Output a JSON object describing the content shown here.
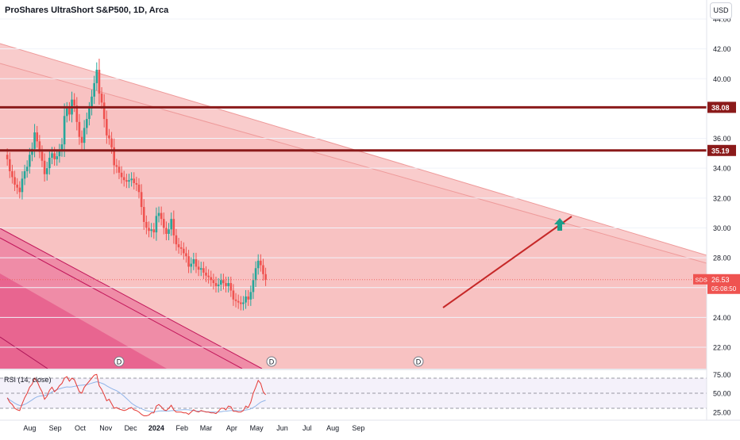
{
  "header": {
    "symbol": "ProShares UltraShort S&P500, 1D, Arca",
    "currency": "USD"
  },
  "colors": {
    "up": "#26a69a",
    "down": "#ef5350",
    "level_line": "#8b1a1a",
    "fan_fill": "#f7b7b7",
    "fan_dark": "#e84c7d",
    "trend_line": "#c62828",
    "arrow": "#1b9e8a",
    "rsi_line": "#e53935",
    "rsi_ma": "#90b4e8"
  },
  "chart_data": [
    {
      "type": "candlestick",
      "title": "ProShares UltraShort S&P500, 1D, Arca",
      "ylim": [
        20.8,
        45.0
      ],
      "y_ticks": [
        "44.00",
        "42.00",
        "40.00",
        "38.00",
        "36.00",
        "34.00",
        "32.00",
        "30.00",
        "28.00",
        "26.00",
        "24.00",
        "22.00"
      ],
      "x_ticks": [
        "Aug",
        "Sep",
        "Oct",
        "Nov",
        "Dec",
        "2024",
        "Feb",
        "Mar",
        "Apr",
        "May",
        "Jun",
        "Jul",
        "Aug",
        "Sep"
      ],
      "horizontal_levels": [
        {
          "label": "38.08",
          "value": 38.08
        },
        {
          "label": "35.19",
          "value": 35.19
        }
      ],
      "last_price": {
        "symbol": "SDS",
        "value": "26.53",
        "countdown": "05:08:50"
      },
      "closes": [
        34.6,
        33.8,
        33.4,
        32.9,
        32.7,
        32.4,
        33.3,
        33.8,
        34.1,
        34.9,
        35.3,
        36.4,
        35.8,
        35.1,
        34.5,
        33.6,
        34.0,
        34.7,
        35.0,
        34.6,
        34.8,
        35.2,
        35.6,
        37.5,
        38.0,
        37.6,
        38.6,
        38.2,
        37.1,
        36.1,
        35.7,
        36.7,
        37.3,
        38.0,
        38.8,
        39.7,
        40.6,
        39.0,
        38.4,
        37.3,
        36.2,
        36.0,
        35.4,
        34.2,
        34.1,
        33.7,
        33.4,
        33.2,
        33.1,
        33.2,
        33.3,
        33.0,
        32.9,
        32.4,
        31.4,
        30.4,
        30.0,
        29.8,
        29.9,
        29.7,
        30.8,
        31.0,
        30.6,
        30.0,
        29.6,
        29.9,
        30.6,
        29.5,
        28.9,
        28.7,
        28.6,
        28.3,
        28.1,
        27.4,
        27.6,
        27.9,
        27.4,
        27.2,
        27.3,
        27.0,
        26.8,
        26.7,
        26.5,
        26.3,
        26.1,
        26.2,
        26.5,
        26.3,
        26.1,
        26.3,
        25.8,
        25.2,
        25.1,
        25.0,
        24.9,
        25.0,
        25.4,
        25.2,
        25.7,
        26.5,
        27.3,
        27.8,
        27.5,
        26.9,
        26.53
      ],
      "x_dates": [
        "2023-07-05",
        "2023-07-08",
        "2023-07-11",
        "2023-07-14",
        "2023-07-17",
        "2023-07-20",
        "2023-07-23",
        "2023-07-26",
        "2023-07-29",
        "2023-08-01",
        "2023-08-04",
        "2023-08-07",
        "2023-08-10",
        "2023-08-13",
        "2023-08-16",
        "2023-08-19",
        "2023-08-22",
        "2023-08-25",
        "2023-08-28",
        "2023-08-31",
        "2023-09-03",
        "2023-09-06",
        "2023-09-09",
        "2023-09-12",
        "2023-09-15",
        "2023-09-18",
        "2023-09-21",
        "2023-09-24",
        "2023-09-27",
        "2023-09-30",
        "2023-10-03",
        "2023-10-06",
        "2023-10-09",
        "2023-10-12",
        "2023-10-15",
        "2023-10-18",
        "2023-10-21",
        "2023-10-24",
        "2023-10-27",
        "2023-10-30",
        "2023-11-02",
        "2023-11-05",
        "2023-11-08",
        "2023-11-11",
        "2023-11-14",
        "2023-11-17",
        "2023-11-20",
        "2023-11-23",
        "2023-11-26",
        "2023-11-29",
        "2023-12-02",
        "2023-12-05",
        "2023-12-08",
        "2023-12-11",
        "2023-12-14",
        "2023-12-17",
        "2023-12-20",
        "2023-12-23",
        "2023-12-26",
        "2023-12-29",
        "2024-01-01",
        "2024-01-04",
        "2024-01-07",
        "2024-01-10",
        "2024-01-13",
        "2024-01-16",
        "2024-01-19",
        "2024-01-22",
        "2024-01-25",
        "2024-01-28",
        "2024-01-31",
        "2024-02-03",
        "2024-02-06",
        "2024-02-09",
        "2024-02-12",
        "2024-02-15",
        "2024-02-18",
        "2024-02-21",
        "2024-02-24",
        "2024-02-27",
        "2024-03-01",
        "2024-03-04",
        "2024-03-07",
        "2024-03-10",
        "2024-03-13",
        "2024-03-16",
        "2024-03-19",
        "2024-03-22",
        "2024-03-25",
        "2024-03-28",
        "2024-03-31",
        "2024-04-03",
        "2024-04-06",
        "2024-04-09",
        "2024-04-12",
        "2024-04-15",
        "2024-04-18",
        "2024-04-21",
        "2024-04-24",
        "2024-04-27",
        "2024-04-30",
        "2024-05-03",
        "2024-05-06",
        "2024-05-09",
        "2024-05-12"
      ]
    },
    {
      "type": "line",
      "title": "RSI (14, close)",
      "ylim": [
        20,
        80
      ],
      "y_ticks": [
        "75.00",
        "50.00",
        "25.00"
      ],
      "bands": [
        70,
        50,
        30
      ],
      "series": [
        {
          "values": [
            44,
            38,
            35,
            30,
            28,
            27,
            36,
            44,
            50,
            58,
            62,
            70,
            66,
            58,
            52,
            42,
            46,
            54,
            58,
            52,
            55,
            60,
            63,
            70,
            72,
            66,
            70,
            68,
            60,
            52,
            50,
            58,
            62,
            66,
            70,
            74,
            75,
            60,
            55,
            48,
            40,
            42,
            36,
            30,
            31,
            29,
            28,
            27,
            28,
            30,
            31,
            28,
            27,
            25,
            22,
            20,
            20,
            21,
            24,
            24,
            33,
            35,
            32,
            28,
            27,
            30,
            34,
            28,
            25,
            25,
            25,
            24,
            24,
            22,
            25,
            28,
            26,
            25,
            27,
            26,
            25,
            25,
            24,
            24,
            23,
            26,
            30,
            30,
            28,
            33,
            32,
            26,
            26,
            25,
            25,
            27,
            33,
            31,
            38,
            50,
            58,
            67,
            63,
            52,
            48
          ]
        }
      ]
    }
  ]
}
